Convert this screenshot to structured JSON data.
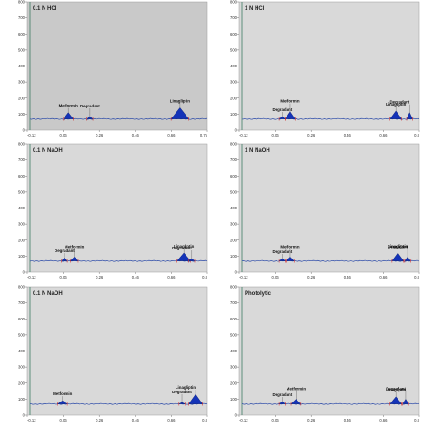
{
  "colors": {
    "plot_bg_grey": "#c9c9c9",
    "plot_bg_light": "#d9d9d9",
    "baseline": "#2a49a8",
    "peak_fill": "#1433b8",
    "peak_edge": "#0b1f6e",
    "injection_line": "#3e7d64",
    "integration_marker": "#d43030"
  },
  "chart_data": [
    {
      "type": "line",
      "title": "0.1 N HCl",
      "ylim": [
        0,
        800
      ],
      "xlim": [
        -0.12,
        0.8
      ],
      "x_ticks": [
        "-0.12",
        "0.06",
        "0.26",
        "0.46",
        "0.66",
        "0.75"
      ],
      "y_ticks": [
        "0",
        "100",
        "200",
        "300",
        "400",
        "500",
        "600",
        "700",
        "800"
      ],
      "baseline": 70,
      "peaks": [
        {
          "name": "Metformin",
          "x": 0.09,
          "height": 110,
          "width": 0.05
        },
        {
          "name": "Degradant",
          "x": 0.2,
          "height": 85,
          "width": 0.03
        },
        {
          "name": "Linagliptin",
          "x": 0.66,
          "height": 140,
          "width": 0.09
        }
      ]
    },
    {
      "type": "line",
      "title": "1 N HCl",
      "ylim": [
        0,
        800
      ],
      "xlim": [
        -0.12,
        0.8
      ],
      "x_ticks": [
        "-0.12",
        "0.06",
        "0.26",
        "0.46",
        "0.66",
        "0.8"
      ],
      "y_ticks": [
        "0",
        "100",
        "200",
        "300",
        "400",
        "500",
        "600",
        "700",
        "800"
      ],
      "baseline": 70,
      "peaks": [
        {
          "name": "Degradant",
          "x": 0.1,
          "height": 85,
          "width": 0.03
        },
        {
          "name": "Metformin",
          "x": 0.14,
          "height": 115,
          "width": 0.05
        },
        {
          "name": "Linagliptin",
          "x": 0.68,
          "height": 120,
          "width": 0.06
        },
        {
          "name": "Degradant",
          "x": 0.75,
          "height": 110,
          "width": 0.03
        }
      ]
    },
    {
      "type": "line",
      "title": "0.1 N NaOH",
      "ylim": [
        0,
        800
      ],
      "xlim": [
        -0.12,
        0.8
      ],
      "x_ticks": [
        "-0.12",
        "0.06",
        "0.26",
        "0.46",
        "0.66",
        "0.8"
      ],
      "y_ticks": [
        "0",
        "100",
        "200",
        "300",
        "400",
        "500",
        "600",
        "700",
        "800"
      ],
      "baseline": 70,
      "peaks": [
        {
          "name": "Degradant",
          "x": 0.07,
          "height": 90,
          "width": 0.03
        },
        {
          "name": "Metformin",
          "x": 0.12,
          "height": 95,
          "width": 0.04
        },
        {
          "name": "Linagliptin",
          "x": 0.68,
          "height": 120,
          "width": 0.07
        },
        {
          "name": "Degradant",
          "x": 0.72,
          "height": 85,
          "width": 0.03
        }
      ]
    },
    {
      "type": "line",
      "title": "1 N NaOH",
      "ylim": [
        0,
        800
      ],
      "xlim": [
        -0.12,
        0.8
      ],
      "x_ticks": [
        "-0.12",
        "0.06",
        "0.26",
        "0.46",
        "0.66",
        "0.8"
      ],
      "y_ticks": [
        "0",
        "100",
        "200",
        "300",
        "400",
        "500",
        "600",
        "700",
        "800"
      ],
      "baseline": 70,
      "peaks": [
        {
          "name": "Degradant",
          "x": 0.1,
          "height": 85,
          "width": 0.03
        },
        {
          "name": "Metformin",
          "x": 0.14,
          "height": 95,
          "width": 0.04
        },
        {
          "name": "Linagliptin",
          "x": 0.69,
          "height": 120,
          "width": 0.06
        },
        {
          "name": "Degradant",
          "x": 0.74,
          "height": 95,
          "width": 0.03
        }
      ]
    },
    {
      "type": "line",
      "title": "0.1 N NaOH",
      "ylim": [
        0,
        800
      ],
      "xlim": [
        -0.12,
        0.8
      ],
      "x_ticks": [
        "-0.12",
        "0.06",
        "0.26",
        "0.46",
        "0.66",
        "0.8"
      ],
      "y_ticks": [
        "0",
        "100",
        "200",
        "300",
        "400",
        "500",
        "600",
        "700",
        "800"
      ],
      "baseline": 70,
      "peaks": [
        {
          "name": "Metformin",
          "x": 0.06,
          "height": 90,
          "width": 0.05
        },
        {
          "name": "Degradant",
          "x": 0.67,
          "height": 80,
          "width": 0.03
        },
        {
          "name": "Linagliptin",
          "x": 0.74,
          "height": 130,
          "width": 0.07
        }
      ]
    },
    {
      "type": "line",
      "title": "Photolytic",
      "ylim": [
        0,
        800
      ],
      "xlim": [
        -0.12,
        0.8
      ],
      "x_ticks": [
        "-0.12",
        "0.06",
        "0.26",
        "0.46",
        "0.66",
        "0.8"
      ],
      "y_ticks": [
        "0",
        "100",
        "200",
        "300",
        "400",
        "500",
        "600",
        "700",
        "800"
      ],
      "baseline": 70,
      "peaks": [
        {
          "name": "Degradant",
          "x": 0.1,
          "height": 85,
          "width": 0.03
        },
        {
          "name": "Metformin",
          "x": 0.17,
          "height": 100,
          "width": 0.05
        },
        {
          "name": "Linagliptin",
          "x": 0.68,
          "height": 115,
          "width": 0.06
        },
        {
          "name": "Degradant",
          "x": 0.73,
          "height": 100,
          "width": 0.03
        }
      ]
    }
  ]
}
